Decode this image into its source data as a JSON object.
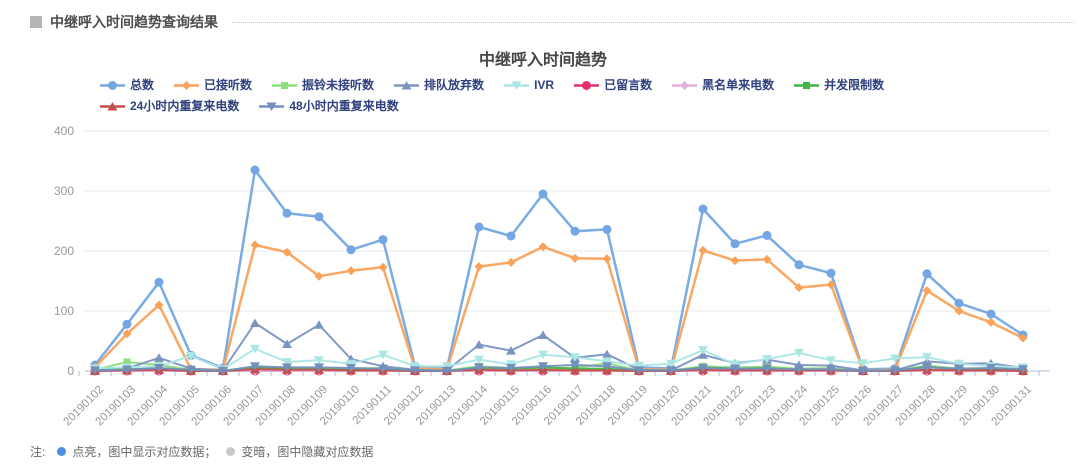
{
  "header": {
    "title": "中继呼入时间趋势查询结果"
  },
  "footer": {
    "note_label": "注:",
    "on_text": "点亮，图中显示对应数据；",
    "off_text": "变暗，图中隐藏对应数据",
    "on_color": "#4a90e2",
    "off_color": "#c9c9c9"
  },
  "chart_data": {
    "type": "line",
    "title": "中继呼入时间趋势",
    "xlabel": "",
    "ylabel": "",
    "ylim": [
      0,
      400
    ],
    "yticks": [
      0,
      100,
      200,
      300,
      400
    ],
    "grid": true,
    "legend_position": "top",
    "axis_color": "#a9bcdd",
    "grid_color": "#e5e8ee",
    "tick_label_color": "#999999",
    "categories": [
      "20190102",
      "20190103",
      "20190104",
      "20190105",
      "20190106",
      "20190107",
      "20190108",
      "20190109",
      "20190110",
      "20190111",
      "20190112",
      "20190113",
      "20190114",
      "20190115",
      "20190116",
      "20190117",
      "20190118",
      "20190119",
      "20190120",
      "20190121",
      "20190122",
      "20190123",
      "20190124",
      "20190125",
      "20190126",
      "20190127",
      "20190128",
      "20190129",
      "20190130",
      "20190131"
    ],
    "series": [
      {
        "name": "总数",
        "color": "#73a6e3",
        "marker": "circle",
        "line_width": 2.5,
        "values": [
          10,
          78,
          148,
          26,
          5,
          335,
          263,
          257,
          202,
          219,
          8,
          5,
          240,
          225,
          295,
          233,
          236,
          6,
          4,
          270,
          212,
          226,
          177,
          163,
          3,
          4,
          162,
          113,
          95,
          60
        ]
      },
      {
        "name": "已接听数",
        "color": "#f9a25a",
        "marker": "diamond",
        "line_width": 2.5,
        "values": [
          6,
          62,
          110,
          3,
          2,
          210,
          198,
          158,
          167,
          173,
          4,
          3,
          174,
          181,
          207,
          188,
          187,
          3,
          2,
          201,
          184,
          186,
          139,
          144,
          1,
          2,
          134,
          100,
          81,
          55
        ]
      },
      {
        "name": "振铃未接听数",
        "color": "#8ede7f",
        "marker": "square",
        "line_width": 2,
        "values": [
          2,
          15,
          10,
          2,
          1,
          6,
          5,
          4,
          4,
          5,
          1,
          1,
          8,
          5,
          5,
          5,
          13,
          1,
          1,
          8,
          6,
          7,
          4,
          5,
          1,
          1,
          9,
          4,
          4,
          2
        ]
      },
      {
        "name": "排队放弃数",
        "color": "#7b94c2",
        "marker": "triangle-up",
        "line_width": 2,
        "values": [
          2,
          4,
          22,
          4,
          1,
          80,
          45,
          77,
          20,
          8,
          2,
          1,
          44,
          34,
          60,
          22,
          28,
          2,
          1,
          27,
          13,
          19,
          10,
          9,
          1,
          1,
          16,
          12,
          13,
          5
        ]
      },
      {
        "name": "IVR",
        "color": "#aae6e4",
        "marker": "triangle-down",
        "line_width": 2,
        "values": [
          4,
          6,
          8,
          25,
          3,
          37,
          15,
          18,
          12,
          27,
          8,
          8,
          19,
          11,
          27,
          23,
          16,
          9,
          12,
          35,
          11,
          20,
          30,
          18,
          13,
          21,
          23,
          12,
          8,
          6
        ]
      },
      {
        "name": "已留言数",
        "color": "#e62e6b",
        "marker": "circle",
        "line_width": 2,
        "values": [
          0,
          0,
          0,
          0,
          0,
          0,
          0,
          0,
          0,
          0,
          0,
          0,
          0,
          0,
          0,
          0,
          0,
          0,
          0,
          0,
          0,
          0,
          0,
          0,
          0,
          0,
          0,
          0,
          0,
          0
        ]
      },
      {
        "name": "黑名单来电数",
        "color": "#e3aee0",
        "marker": "diamond",
        "line_width": 2,
        "values": [
          0,
          0,
          0,
          0,
          0,
          0,
          0,
          0,
          0,
          0,
          0,
          0,
          0,
          0,
          0,
          0,
          0,
          0,
          0,
          0,
          0,
          0,
          0,
          0,
          0,
          0,
          0,
          0,
          0,
          0
        ]
      },
      {
        "name": "并发限制数",
        "color": "#44b244",
        "marker": "square",
        "line_width": 2,
        "values": [
          1,
          3,
          4,
          1,
          0,
          5,
          4,
          3,
          3,
          3,
          0,
          0,
          5,
          4,
          6,
          4,
          4,
          0,
          0,
          6,
          4,
          5,
          2,
          2,
          0,
          0,
          7,
          2,
          2,
          1
        ]
      },
      {
        "name": "24小时内重复来电数",
        "color": "#c4504e",
        "marker": "triangle-up",
        "line_width": 2,
        "values": [
          0,
          1,
          2,
          0,
          0,
          3,
          2,
          2,
          1,
          1,
          0,
          0,
          2,
          1,
          2,
          1,
          1,
          0,
          0,
          2,
          1,
          1,
          1,
          1,
          0,
          0,
          2,
          1,
          1,
          0
        ]
      },
      {
        "name": "48小时内重复来电数",
        "color": "#7390bd",
        "marker": "triangle-down",
        "line_width": 2,
        "values": [
          1,
          2,
          5,
          2,
          0,
          8,
          6,
          6,
          5,
          4,
          1,
          0,
          6,
          5,
          8,
          10,
          8,
          1,
          1,
          5,
          4,
          4,
          3,
          3,
          0,
          1,
          6,
          4,
          5,
          3
        ]
      }
    ]
  }
}
